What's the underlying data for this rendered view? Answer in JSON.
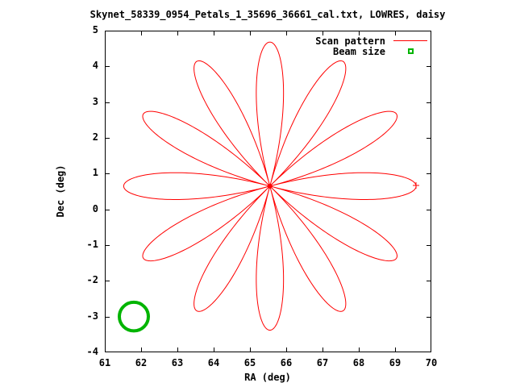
{
  "title": "Skynet_58339_0954_Petals_1_35696_36661_cal.txt, LOWRES, daisy",
  "legend": {
    "items": [
      {
        "label": "Scan pattern",
        "sample": "line",
        "color": "#ff0000"
      },
      {
        "label": "Beam size",
        "sample": "square-dot-marker",
        "color": "#00b400"
      }
    ]
  },
  "chart_data": {
    "type": "line",
    "title": "Skynet_58339_0954_Petals_1_35696_36661_cal.txt, LOWRES, daisy",
    "xlabel": "RA (deg)",
    "ylabel": "Dec (deg)",
    "xlim": [
      61,
      70
    ],
    "ylim": [
      -4,
      5
    ],
    "xticks": [
      61,
      62,
      63,
      64,
      65,
      66,
      67,
      68,
      69,
      70
    ],
    "yticks": [
      -4,
      -3,
      -2,
      -1,
      0,
      1,
      2,
      3,
      4,
      5
    ],
    "grid": false,
    "legend_position": "top-right-inside",
    "series": [
      {
        "name": "Scan pattern",
        "shape": "rose",
        "color": "#ff0000",
        "center": [
          65.55,
          0.65
        ],
        "radius": 4.03,
        "petals": 12,
        "petal_tip_angles_deg": [
          0,
          30,
          60,
          90,
          120,
          150,
          180,
          210,
          240,
          270,
          300,
          330
        ],
        "start_marker": {
          "ra": 69.58,
          "dec": 0.67,
          "type": "plus"
        }
      },
      {
        "name": "Beam size",
        "shape": "circle",
        "color": "#00b400",
        "center": [
          61.8,
          -3.0
        ],
        "radius": 0.4
      }
    ]
  }
}
